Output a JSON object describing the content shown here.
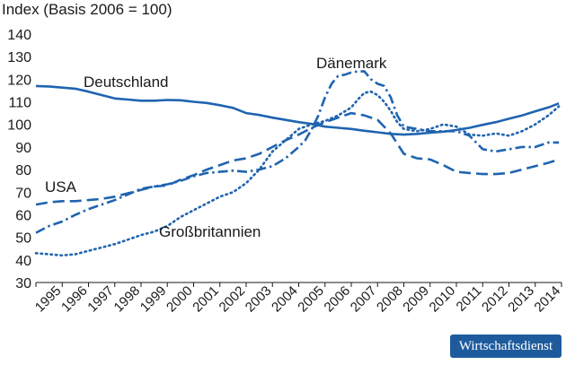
{
  "chart_data": {
    "type": "line",
    "title": "Index (Basis 2006 = 100)",
    "xlabel": "",
    "ylabel": "",
    "ylim": [
      30,
      140
    ],
    "yticks": [
      30,
      40,
      50,
      60,
      70,
      80,
      90,
      100,
      110,
      120,
      130,
      140
    ],
    "xlim": [
      1995,
      2015
    ],
    "xtick_labels": [
      "1995",
      "1996",
      "1997",
      "1998",
      "1999",
      "2000",
      "2001",
      "2002",
      "2003",
      "2004",
      "2005",
      "2006",
      "2007",
      "2008",
      "2009",
      "2010",
      "2011",
      "2012",
      "2013",
      "2014"
    ],
    "line_color": "#1f64b0",
    "series": [
      {
        "name": "Deutschland",
        "style": "solid",
        "x": [
          1995,
          1995.5,
          1996,
          1996.5,
          1997,
          1997.5,
          1998,
          1998.5,
          1999,
          1999.5,
          2000,
          2000.5,
          2001,
          2001.5,
          2002,
          2002.5,
          2003,
          2003.5,
          2004,
          2004.5,
          2005,
          2005.5,
          2006,
          2006.5,
          2007,
          2007.5,
          2008,
          2008.5,
          2009,
          2009.5,
          2010,
          2010.5,
          2011,
          2011.5,
          2012,
          2012.5,
          2013,
          2013.5,
          2014,
          2014.5,
          2014.9
        ],
        "y": [
          117,
          116.8,
          116.3,
          115.8,
          114.5,
          113,
          111.5,
          111,
          110.5,
          110.5,
          110.8,
          110.7,
          110,
          109.5,
          108.5,
          107.3,
          105,
          104.2,
          103,
          102,
          101,
          100.2,
          99,
          98.5,
          98,
          97.2,
          96.5,
          95.8,
          95.5,
          95.8,
          96.3,
          96.8,
          97.5,
          98.5,
          99.8,
          101,
          102.5,
          104,
          105.8,
          107.5,
          109.3
        ]
      },
      {
        "name": "Dänemark",
        "style": "dashdot",
        "x": [
          1995,
          1995.5,
          1996,
          1996.5,
          1997,
          1997.5,
          1998,
          1998.5,
          1999,
          1999.5,
          2000,
          2000.5,
          2001,
          2001.5,
          2002,
          2002.5,
          2003,
          2003.5,
          2004,
          2004.5,
          2005,
          2005.25,
          2005.5,
          2005.75,
          2006,
          2006.25,
          2006.5,
          2006.75,
          2007,
          2007.25,
          2007.5,
          2007.75,
          2008,
          2008.25,
          2008.5,
          2008.75,
          2009,
          2009.5,
          2010,
          2010.5,
          2011,
          2011.5,
          2012,
          2012.5,
          2013,
          2013.5,
          2014,
          2014.5,
          2014.9
        ],
        "y": [
          52,
          55,
          57,
          60,
          62.5,
          64.5,
          66.5,
          69,
          71.5,
          72.5,
          73.5,
          75,
          77,
          78.5,
          79,
          79.5,
          79,
          80,
          81.5,
          85,
          90,
          93,
          98,
          104,
          112,
          118,
          121.5,
          122,
          123,
          123.5,
          123.5,
          120,
          118,
          117,
          112,
          104,
          99,
          98,
          97,
          97,
          97,
          95,
          89,
          88,
          89,
          90,
          90,
          92,
          92
        ]
      },
      {
        "name": "USA",
        "style": "dashed",
        "x": [
          1995,
          1995.5,
          1996,
          1996.5,
          1997,
          1997.5,
          1998,
          1998.5,
          1999,
          1999.5,
          2000,
          2000.5,
          2001,
          2001.5,
          2002,
          2002.5,
          2003,
          2003.5,
          2004,
          2004.5,
          2005,
          2005.5,
          2006,
          2006.5,
          2007,
          2007.5,
          2008,
          2008.5,
          2009,
          2009.5,
          2010,
          2010.5,
          2011,
          2011.5,
          2012,
          2012.5,
          2013,
          2013.5,
          2014,
          2014.5,
          2014.9
        ],
        "y": [
          64.5,
          65.5,
          66,
          66,
          66.5,
          67,
          68,
          69.5,
          71,
          72.5,
          73,
          75.5,
          77.5,
          80,
          82,
          84,
          85,
          87,
          90,
          93,
          95.5,
          98.5,
          101,
          103,
          105,
          104,
          102,
          96,
          87,
          85,
          84.5,
          82,
          79,
          78.5,
          78,
          78,
          78.5,
          80,
          81.5,
          83,
          84.5
        ]
      },
      {
        "name": "Großbritannien",
        "style": "dotted",
        "x": [
          1995,
          1995.5,
          1996,
          1996.5,
          1997,
          1997.5,
          1998,
          1998.5,
          1999,
          1999.5,
          2000,
          2000.5,
          2001,
          2001.5,
          2002,
          2002.5,
          2003,
          2003.5,
          2004,
          2004.5,
          2005,
          2005.5,
          2006,
          2006.5,
          2007,
          2007.25,
          2007.5,
          2007.75,
          2008,
          2008.25,
          2008.5,
          2008.75,
          2009,
          2009.5,
          2010,
          2010.5,
          2011,
          2011.5,
          2012,
          2012.5,
          2013,
          2013.5,
          2014,
          2014.5,
          2014.9
        ],
        "y": [
          43,
          42.5,
          42,
          42.5,
          44,
          45.5,
          47,
          49,
          51,
          52.5,
          55,
          59,
          62,
          65,
          68,
          70,
          74,
          80,
          88,
          93,
          98,
          100,
          101.5,
          104,
          107.5,
          111,
          114,
          114.5,
          113,
          110,
          106,
          101,
          98,
          97,
          98,
          100,
          99,
          95.5,
          95,
          96,
          95,
          97,
          100,
          104,
          108
        ]
      }
    ],
    "annotations": [
      "Deutschland",
      "Dänemark",
      "USA",
      "Großbritannien"
    ]
  },
  "badge": {
    "label": "Wirtschaftsdienst"
  }
}
